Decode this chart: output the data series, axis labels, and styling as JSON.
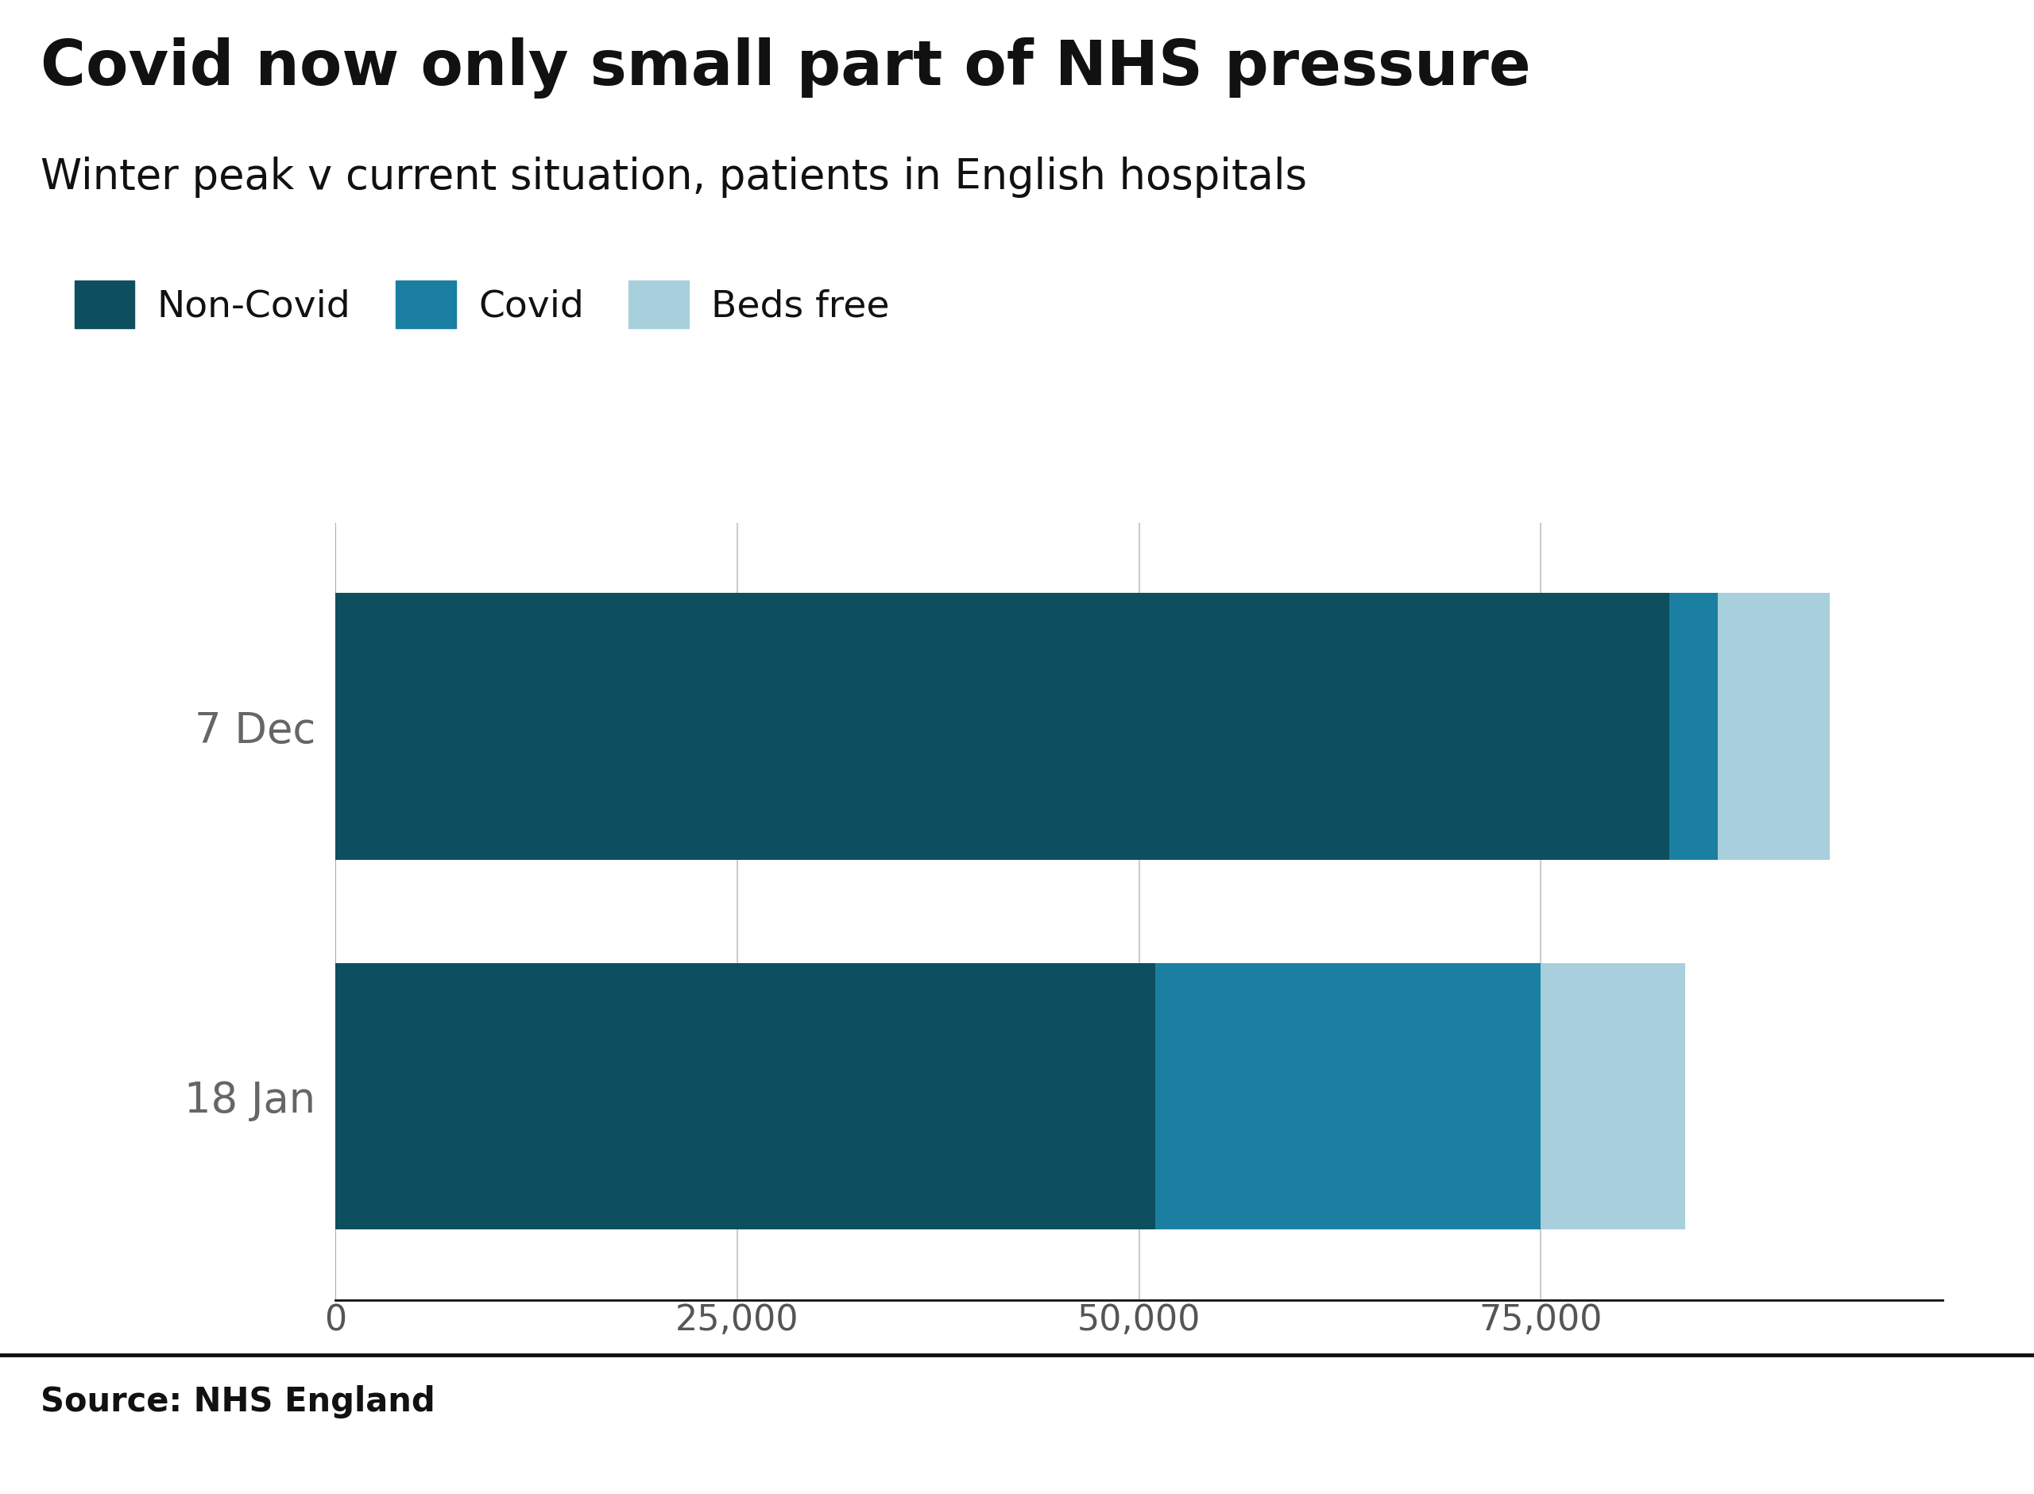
{
  "title": "Covid now only small part of NHS pressure",
  "subtitle": "Winter peak v current situation, patients in English hospitals",
  "source": "Source: NHS England",
  "categories_display": [
    "18 Jan",
    "7 Dec"
  ],
  "non_covid": [
    51000,
    83000
  ],
  "covid": [
    24000,
    3000
  ],
  "beds_free": [
    9000,
    7000
  ],
  "color_non_covid": "#0d4f5e",
  "color_covid": "#1a7fa0",
  "color_beds_free": "#a8d0dc",
  "xlim": [
    0,
    100000
  ],
  "xticks": [
    0,
    25000,
    50000,
    75000
  ],
  "background_color": "#ffffff",
  "title_fontsize": 56,
  "subtitle_fontsize": 38,
  "legend_fontsize": 34,
  "tick_fontsize": 32,
  "ylabel_fontsize": 38,
  "source_fontsize": 30,
  "bar_height": 0.72
}
